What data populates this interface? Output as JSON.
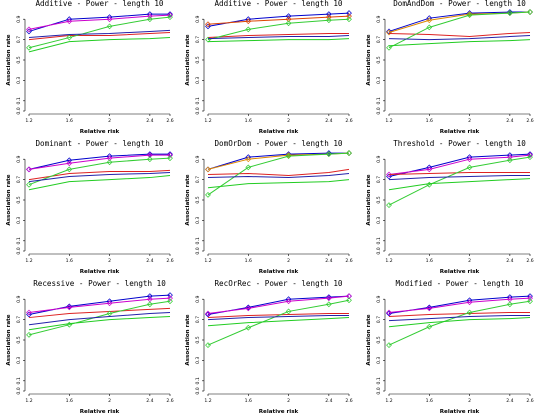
{
  "chart_data": [
    {
      "type": "line",
      "title": "Additive  - Power  - length 10",
      "xlabel": "Relative risk",
      "ylabel": "Association rate",
      "x": [
        1.2,
        1.6,
        2,
        2.4,
        2.6
      ],
      "xticks": [
        "1.2",
        "1.6",
        "2",
        "2.4",
        "2.6"
      ],
      "ylim": [
        0,
        1
      ],
      "yticks": [
        "0.0",
        "0.1",
        "0.3",
        "0.5",
        "0.7",
        "0.9"
      ],
      "grid": false,
      "series": [
        {
          "color": "#0000cc",
          "marker": "diamond",
          "values": [
            0.78,
            0.9,
            0.92,
            0.95,
            0.95
          ]
        },
        {
          "color": "#cc00cc",
          "marker": "diamond",
          "values": [
            0.8,
            0.88,
            0.9,
            0.93,
            0.94
          ]
        },
        {
          "color": "#dd2222",
          "marker": "none",
          "values": [
            0.7,
            0.74,
            0.74,
            0.76,
            0.77
          ]
        },
        {
          "color": "#33cc33",
          "marker": "diamond",
          "values": [
            0.62,
            0.72,
            0.83,
            0.9,
            0.92
          ]
        },
        {
          "color": "#2222aa",
          "marker": "none",
          "values": [
            0.72,
            0.75,
            0.76,
            0.78,
            0.79
          ]
        },
        {
          "color": "#22cc22",
          "marker": "none",
          "values": [
            0.58,
            0.68,
            0.7,
            0.71,
            0.72
          ]
        }
      ]
    },
    {
      "type": "line",
      "title": "Additive  - Power  - length 10",
      "xlabel": "Relative risk",
      "ylabel": "Association rate",
      "x": [
        1.2,
        1.6,
        2,
        2.4,
        2.6
      ],
      "xticks": [
        "1.2",
        "1.6",
        "2",
        "2.4",
        "2.6"
      ],
      "ylim": [
        0,
        1
      ],
      "yticks": [
        "0.0",
        "0.1",
        "0.3",
        "0.5",
        "0.7",
        "0.9"
      ],
      "grid": false,
      "series": [
        {
          "color": "#0000cc",
          "marker": "diamond",
          "values": [
            0.83,
            0.9,
            0.93,
            0.95,
            0.96
          ]
        },
        {
          "color": "#dd4400",
          "marker": "diamond",
          "values": [
            0.85,
            0.88,
            0.9,
            0.92,
            0.93
          ]
        },
        {
          "color": "#dd2222",
          "marker": "none",
          "values": [
            0.72,
            0.74,
            0.75,
            0.76,
            0.76
          ]
        },
        {
          "color": "#33cc33",
          "marker": "diamond",
          "values": [
            0.7,
            0.8,
            0.86,
            0.89,
            0.9
          ]
        },
        {
          "color": "#2222aa",
          "marker": "none",
          "values": [
            0.71,
            0.72,
            0.73,
            0.73,
            0.74
          ]
        },
        {
          "color": "#22cc22",
          "marker": "none",
          "values": [
            0.68,
            0.69,
            0.7,
            0.7,
            0.71
          ]
        }
      ]
    },
    {
      "type": "line",
      "title": "DomAndDom  - Power  - length 10",
      "xlabel": "Relative risk",
      "ylabel": "Association rate",
      "x": [
        1.2,
        1.6,
        2,
        2.4,
        2.6
      ],
      "xticks": [
        "1.2",
        "1.6",
        "2",
        "2.4",
        "2.6"
      ],
      "ylim": [
        0,
        1
      ],
      "yticks": [
        "0.0",
        "0.1",
        "0.3",
        "0.5",
        "0.7",
        "0.9"
      ],
      "grid": false,
      "series": [
        {
          "color": "#0000cc",
          "marker": "diamond",
          "values": [
            0.78,
            0.91,
            0.96,
            0.97,
            0.97
          ]
        },
        {
          "color": "#dd8800",
          "marker": "diamond",
          "values": [
            0.77,
            0.89,
            0.95,
            0.96,
            0.97
          ]
        },
        {
          "color": "#dd2222",
          "marker": "none",
          "values": [
            0.76,
            0.75,
            0.73,
            0.76,
            0.77
          ]
        },
        {
          "color": "#33cc33",
          "marker": "diamond",
          "values": [
            0.62,
            0.82,
            0.94,
            0.96,
            0.97
          ]
        },
        {
          "color": "#2222aa",
          "marker": "none",
          "values": [
            0.71,
            0.7,
            0.71,
            0.73,
            0.74
          ]
        },
        {
          "color": "#22cc22",
          "marker": "none",
          "values": [
            0.64,
            0.66,
            0.68,
            0.69,
            0.7
          ]
        }
      ]
    },
    {
      "type": "line",
      "title": "Dominant  - Power  - length 10",
      "xlabel": "Relative risk",
      "ylabel": "Association rate",
      "x": [
        1.2,
        1.6,
        2,
        2.4,
        2.6
      ],
      "xticks": [
        "1.2",
        "1.6",
        "2",
        "2.4",
        "2.6"
      ],
      "ylim": [
        0,
        1
      ],
      "yticks": [
        "0.0",
        "0.1",
        "0.3",
        "0.5",
        "0.7",
        "0.9"
      ],
      "grid": false,
      "series": [
        {
          "color": "#0000cc",
          "marker": "diamond",
          "values": [
            0.8,
            0.89,
            0.93,
            0.95,
            0.95
          ]
        },
        {
          "color": "#cc00cc",
          "marker": "diamond",
          "values": [
            0.8,
            0.86,
            0.91,
            0.94,
            0.94
          ]
        },
        {
          "color": "#dd2222",
          "marker": "none",
          "values": [
            0.7,
            0.76,
            0.78,
            0.78,
            0.79
          ]
        },
        {
          "color": "#33cc33",
          "marker": "diamond",
          "values": [
            0.65,
            0.8,
            0.87,
            0.9,
            0.91
          ]
        },
        {
          "color": "#2222aa",
          "marker": "none",
          "values": [
            0.68,
            0.73,
            0.75,
            0.76,
            0.77
          ]
        },
        {
          "color": "#22cc22",
          "marker": "none",
          "values": [
            0.6,
            0.68,
            0.7,
            0.72,
            0.74
          ]
        }
      ]
    },
    {
      "type": "line",
      "title": "DomOrDom  - Power  - length 10",
      "xlabel": "Relative risk",
      "ylabel": "Association rate",
      "x": [
        1.2,
        1.6,
        2,
        2.4,
        2.6
      ],
      "xticks": [
        "1.2",
        "1.6",
        "2",
        "2.4",
        "2.6"
      ],
      "ylim": [
        0,
        1
      ],
      "yticks": [
        "0.0",
        "0.1",
        "0.3",
        "0.5",
        "0.7",
        "0.9"
      ],
      "grid": false,
      "series": [
        {
          "color": "#0000cc",
          "marker": "diamond",
          "values": [
            0.8,
            0.92,
            0.95,
            0.96,
            0.96
          ]
        },
        {
          "color": "#dd8800",
          "marker": "diamond",
          "values": [
            0.8,
            0.9,
            0.94,
            0.95,
            0.96
          ]
        },
        {
          "color": "#dd2222",
          "marker": "none",
          "values": [
            0.75,
            0.76,
            0.74,
            0.77,
            0.8
          ]
        },
        {
          "color": "#33cc33",
          "marker": "diamond",
          "values": [
            0.55,
            0.82,
            0.93,
            0.95,
            0.96
          ]
        },
        {
          "color": "#2222aa",
          "marker": "none",
          "values": [
            0.72,
            0.73,
            0.72,
            0.74,
            0.76
          ]
        },
        {
          "color": "#22cc22",
          "marker": "none",
          "values": [
            0.62,
            0.66,
            0.67,
            0.68,
            0.7
          ]
        }
      ]
    },
    {
      "type": "line",
      "title": "Threshold  - Power  - length 10",
      "xlabel": "Relative risk",
      "ylabel": "Association rate",
      "x": [
        1.2,
        1.6,
        2,
        2.4,
        2.6
      ],
      "xticks": [
        "1.2",
        "1.6",
        "2",
        "2.4",
        "2.6"
      ],
      "ylim": [
        0,
        1
      ],
      "yticks": [
        "0.0",
        "0.1",
        "0.3",
        "0.5",
        "0.7",
        "0.9"
      ],
      "grid": false,
      "series": [
        {
          "color": "#0000cc",
          "marker": "diamond",
          "values": [
            0.73,
            0.82,
            0.92,
            0.94,
            0.95
          ]
        },
        {
          "color": "#cc00cc",
          "marker": "diamond",
          "values": [
            0.75,
            0.8,
            0.9,
            0.92,
            0.94
          ]
        },
        {
          "color": "#dd2222",
          "marker": "none",
          "values": [
            0.75,
            0.76,
            0.77,
            0.77,
            0.77
          ]
        },
        {
          "color": "#33cc33",
          "marker": "diamond",
          "values": [
            0.45,
            0.65,
            0.82,
            0.89,
            0.92
          ]
        },
        {
          "color": "#2222aa",
          "marker": "none",
          "values": [
            0.7,
            0.72,
            0.73,
            0.74,
            0.74
          ]
        },
        {
          "color": "#22cc22",
          "marker": "none",
          "values": [
            0.6,
            0.66,
            0.68,
            0.7,
            0.71
          ]
        }
      ]
    },
    {
      "type": "line",
      "title": "Recessive  - Power  - length 10",
      "xlabel": "Relative risk",
      "ylabel": "Association rate",
      "x": [
        1.2,
        1.6,
        2,
        2.4,
        2.6
      ],
      "xticks": [
        "1.2",
        "1.6",
        "2",
        "2.4",
        "2.6"
      ],
      "ylim": [
        0,
        1
      ],
      "yticks": [
        "0.0",
        "0.1",
        "0.3",
        "0.5",
        "0.7",
        "0.9"
      ],
      "grid": false,
      "series": [
        {
          "color": "#0000cc",
          "marker": "diamond",
          "values": [
            0.75,
            0.83,
            0.88,
            0.93,
            0.94
          ]
        },
        {
          "color": "#cc00cc",
          "marker": "diamond",
          "values": [
            0.77,
            0.82,
            0.86,
            0.9,
            0.91
          ]
        },
        {
          "color": "#dd2222",
          "marker": "none",
          "values": [
            0.72,
            0.76,
            0.78,
            0.8,
            0.81
          ]
        },
        {
          "color": "#33cc33",
          "marker": "diamond",
          "values": [
            0.55,
            0.65,
            0.76,
            0.85,
            0.88
          ]
        },
        {
          "color": "#2222aa",
          "marker": "none",
          "values": [
            0.65,
            0.7,
            0.73,
            0.76,
            0.77
          ]
        },
        {
          "color": "#22cc22",
          "marker": "none",
          "values": [
            0.6,
            0.66,
            0.7,
            0.72,
            0.73
          ]
        }
      ]
    },
    {
      "type": "line",
      "title": "RecOrRec  - Power  - length 10",
      "xlabel": "Relative risk",
      "ylabel": "Association rate",
      "x": [
        1.2,
        1.6,
        2,
        2.4,
        2.6
      ],
      "xticks": [
        "1.2",
        "1.6",
        "2",
        "2.4",
        "2.6"
      ],
      "ylim": [
        0,
        1
      ],
      "yticks": [
        "0.0",
        "0.1",
        "0.3",
        "0.5",
        "0.7",
        "0.9"
      ],
      "grid": false,
      "series": [
        {
          "color": "#0000cc",
          "marker": "diamond",
          "values": [
            0.75,
            0.82,
            0.9,
            0.92,
            0.93
          ]
        },
        {
          "color": "#cc00cc",
          "marker": "diamond",
          "values": [
            0.76,
            0.81,
            0.88,
            0.91,
            0.93
          ]
        },
        {
          "color": "#dd2222",
          "marker": "none",
          "values": [
            0.72,
            0.74,
            0.75,
            0.76,
            0.76
          ]
        },
        {
          "color": "#33cc33",
          "marker": "diamond",
          "values": [
            0.45,
            0.62,
            0.78,
            0.85,
            0.89
          ]
        },
        {
          "color": "#2222aa",
          "marker": "none",
          "values": [
            0.7,
            0.72,
            0.73,
            0.74,
            0.74
          ]
        },
        {
          "color": "#22cc22",
          "marker": "none",
          "values": [
            0.64,
            0.67,
            0.69,
            0.71,
            0.72
          ]
        }
      ]
    },
    {
      "type": "line",
      "title": "Modified  - Power  - length 10",
      "xlabel": "Relative risk",
      "ylabel": "Association rate",
      "x": [
        1.2,
        1.6,
        2,
        2.4,
        2.6
      ],
      "xticks": [
        "1.2",
        "1.6",
        "2",
        "2.4",
        "2.6"
      ],
      "ylim": [
        0,
        1
      ],
      "yticks": [
        "0.0",
        "0.1",
        "0.3",
        "0.5",
        "0.7",
        "0.9"
      ],
      "grid": false,
      "series": [
        {
          "color": "#0000cc",
          "marker": "diamond",
          "values": [
            0.76,
            0.82,
            0.89,
            0.92,
            0.93
          ]
        },
        {
          "color": "#cc00cc",
          "marker": "diamond",
          "values": [
            0.77,
            0.81,
            0.87,
            0.9,
            0.91
          ]
        },
        {
          "color": "#dd2222",
          "marker": "none",
          "values": [
            0.73,
            0.75,
            0.76,
            0.77,
            0.77
          ]
        },
        {
          "color": "#33cc33",
          "marker": "diamond",
          "values": [
            0.45,
            0.63,
            0.77,
            0.85,
            0.88
          ]
        },
        {
          "color": "#2222aa",
          "marker": "none",
          "values": [
            0.69,
            0.71,
            0.73,
            0.74,
            0.74
          ]
        },
        {
          "color": "#22cc22",
          "marker": "none",
          "values": [
            0.63,
            0.67,
            0.7,
            0.71,
            0.72
          ]
        }
      ]
    }
  ]
}
